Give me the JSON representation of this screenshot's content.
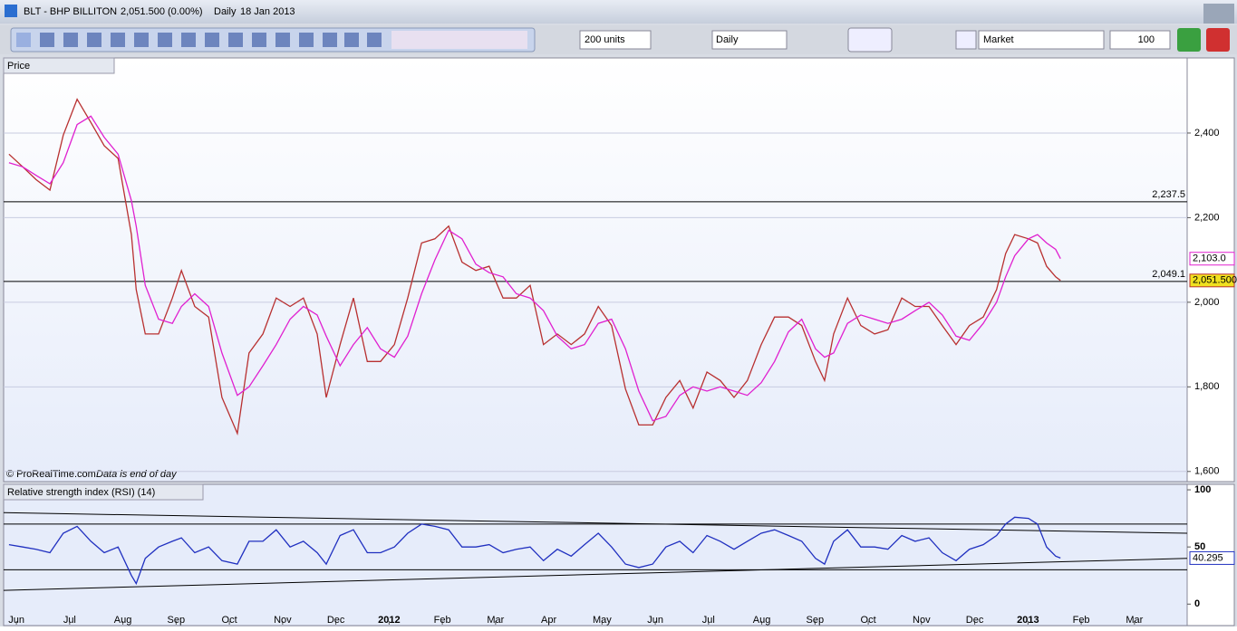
{
  "header": {
    "symbol": "BLT - BHP BILLITON",
    "quote": "2,051.500 (0.00%)",
    "period": "Daily",
    "date": "18 Jan 2013"
  },
  "toolbar": {
    "units": "200 units",
    "period": "Daily",
    "order_type": "Market",
    "quantity": "100"
  },
  "chart_data": [
    {
      "type": "line",
      "title": "Price",
      "credit": "© ProRealTime.com",
      "note": "Data is end of day",
      "x": [
        -0.14,
        0.12,
        0.37,
        0.63,
        0.88,
        1.14,
        1.4,
        1.65,
        1.91,
        2.16,
        2.25,
        2.42,
        2.67,
        2.93,
        3.1,
        3.35,
        3.61,
        3.86,
        4.15,
        4.37,
        4.63,
        4.88,
        5.14,
        5.39,
        5.65,
        5.82,
        6.08,
        6.33,
        6.59,
        6.84,
        7.1,
        7.35,
        7.61,
        7.86,
        8.12,
        8.37,
        8.63,
        8.88,
        9.14,
        9.39,
        9.65,
        9.9,
        10.16,
        10.42,
        10.67,
        10.93,
        11.18,
        11.44,
        11.69,
        11.95,
        12.2,
        12.46,
        12.71,
        12.97,
        13.22,
        13.48,
        13.73,
        13.99,
        14.24,
        14.5,
        14.75,
        15.01,
        15.18,
        15.35,
        15.61,
        15.86,
        16.12,
        16.37,
        16.63,
        16.88,
        17.14,
        17.39,
        17.65,
        17.9,
        18.16,
        18.41,
        18.58,
        18.75,
        19.01,
        19.18,
        19.35,
        19.52,
        19.61
      ],
      "series": [
        {
          "color": "#b83030",
          "last_label": "2,051.500",
          "values": [
            2350,
            2320,
            2290,
            2265,
            2395,
            2480,
            2425,
            2370,
            2340,
            2160,
            2030,
            1925,
            1925,
            2010,
            2075,
            1990,
            1965,
            1775,
            1690,
            1880,
            1925,
            2010,
            1990,
            2010,
            1925,
            1775,
            1900,
            2010,
            1860,
            1860,
            1900,
            2010,
            2140,
            2150,
            2180,
            2095,
            2075,
            2085,
            2010,
            2010,
            2040,
            1900,
            1925,
            1900,
            1925,
            1990,
            1945,
            1795,
            1710,
            1710,
            1775,
            1815,
            1750,
            1835,
            1815,
            1775,
            1815,
            1900,
            1965,
            1965,
            1945,
            1860,
            1815,
            1925,
            2010,
            1945,
            1925,
            1935,
            2010,
            1990,
            1990,
            1945,
            1900,
            1945,
            1965,
            2030,
            2115,
            2160,
            2150,
            2140,
            2085,
            2060,
            2051.5
          ]
        },
        {
          "color": "#e020d0",
          "last_label": "2,103.0",
          "values": [
            2330,
            2320,
            2300,
            2280,
            2330,
            2420,
            2440,
            2390,
            2350,
            2240,
            2180,
            2040,
            1960,
            1950,
            1990,
            2020,
            1990,
            1880,
            1780,
            1800,
            1850,
            1900,
            1960,
            1990,
            1970,
            1920,
            1850,
            1900,
            1940,
            1890,
            1870,
            1920,
            2020,
            2100,
            2170,
            2150,
            2090,
            2070,
            2060,
            2020,
            2010,
            1980,
            1920,
            1890,
            1900,
            1950,
            1960,
            1890,
            1790,
            1720,
            1730,
            1780,
            1800,
            1790,
            1800,
            1790,
            1780,
            1810,
            1860,
            1930,
            1960,
            1890,
            1870,
            1880,
            1950,
            1970,
            1960,
            1950,
            1960,
            1980,
            2000,
            1970,
            1920,
            1910,
            1950,
            2000,
            2060,
            2110,
            2150,
            2160,
            2140,
            2125,
            2103.0
          ]
        }
      ],
      "levels": [
        {
          "value": 2237.5,
          "label": "2,237.5"
        },
        {
          "value": 2049.1,
          "label": "2,049.1"
        }
      ],
      "xlim": [
        -0.24,
        21.99
      ],
      "ylim": [
        1576,
        2539
      ],
      "yticks": [
        {
          "value": 2400,
          "label": "2,400"
        },
        {
          "value": 2200,
          "label": "2,200"
        },
        {
          "value": 2000,
          "label": "2,000"
        },
        {
          "value": 1800,
          "label": "1,800"
        },
        {
          "value": 1600,
          "label": "1,600"
        }
      ],
      "grid": true
    },
    {
      "type": "line",
      "title": "Relative strength index (RSI) (14)",
      "x": [
        -0.14,
        0.12,
        0.37,
        0.63,
        0.88,
        1.14,
        1.4,
        1.65,
        1.91,
        2.16,
        2.25,
        2.42,
        2.67,
        2.93,
        3.1,
        3.35,
        3.61,
        3.86,
        4.15,
        4.37,
        4.63,
        4.88,
        5.14,
        5.39,
        5.65,
        5.82,
        6.08,
        6.33,
        6.59,
        6.84,
        7.1,
        7.35,
        7.61,
        7.86,
        8.12,
        8.37,
        8.63,
        8.88,
        9.14,
        9.39,
        9.65,
        9.9,
        10.16,
        10.42,
        10.67,
        10.93,
        11.18,
        11.44,
        11.69,
        11.95,
        12.2,
        12.46,
        12.71,
        12.97,
        13.22,
        13.48,
        13.73,
        13.99,
        14.24,
        14.5,
        14.75,
        15.01,
        15.18,
        15.35,
        15.61,
        15.86,
        16.12,
        16.37,
        16.63,
        16.88,
        17.14,
        17.39,
        17.65,
        17.9,
        18.16,
        18.41,
        18.58,
        18.75,
        19.01,
        19.18,
        19.35,
        19.52,
        19.61
      ],
      "series": [
        {
          "color": "#2030c0",
          "last_label": "40.295",
          "values": [
            52,
            50,
            48,
            45,
            62,
            68,
            55,
            45,
            50,
            25,
            18,
            40,
            50,
            55,
            58,
            45,
            50,
            38,
            35,
            55,
            55,
            65,
            50,
            55,
            45,
            35,
            60,
            65,
            45,
            45,
            50,
            62,
            70,
            68,
            65,
            50,
            50,
            52,
            45,
            48,
            50,
            38,
            48,
            42,
            52,
            62,
            50,
            35,
            32,
            35,
            50,
            55,
            45,
            60,
            55,
            48,
            55,
            62,
            65,
            60,
            55,
            40,
            35,
            55,
            65,
            50,
            50,
            48,
            60,
            55,
            58,
            45,
            38,
            48,
            52,
            60,
            70,
            76,
            75,
            70,
            50,
            42,
            40.295
          ]
        }
      ],
      "levels": [
        70,
        30
      ],
      "trendlines": [
        {
          "x": [
            -0.24,
            21.99
          ],
          "y": [
            80,
            62
          ]
        },
        {
          "x": [
            -0.24,
            21.99
          ],
          "y": [
            12,
            40
          ]
        }
      ],
      "xlim": [
        -0.24,
        21.99
      ],
      "ylim": [
        -18,
        104
      ],
      "yticks": [
        100,
        50,
        0
      ],
      "xticks": [
        {
          "value": 0,
          "label": "Jun"
        },
        {
          "value": 1,
          "label": "Jul"
        },
        {
          "value": 2,
          "label": "Aug"
        },
        {
          "value": 3,
          "label": "Sep"
        },
        {
          "value": 4,
          "label": "Oct"
        },
        {
          "value": 5,
          "label": "Nov"
        },
        {
          "value": 6,
          "label": "Dec"
        },
        {
          "value": 7,
          "label": "2012"
        },
        {
          "value": 8,
          "label": "Feb"
        },
        {
          "value": 9,
          "label": "Mar"
        },
        {
          "value": 10,
          "label": "Apr"
        },
        {
          "value": 11,
          "label": "May"
        },
        {
          "value": 12,
          "label": "Jun"
        },
        {
          "value": 13,
          "label": "Jul"
        },
        {
          "value": 14,
          "label": "Aug"
        },
        {
          "value": 15,
          "label": "Sep"
        },
        {
          "value": 16,
          "label": "Oct"
        },
        {
          "value": 17,
          "label": "Nov"
        },
        {
          "value": 18,
          "label": "Dec"
        },
        {
          "value": 19,
          "label": "2013"
        },
        {
          "value": 20,
          "label": "Feb"
        },
        {
          "value": 21,
          "label": "Mar"
        }
      ]
    }
  ]
}
